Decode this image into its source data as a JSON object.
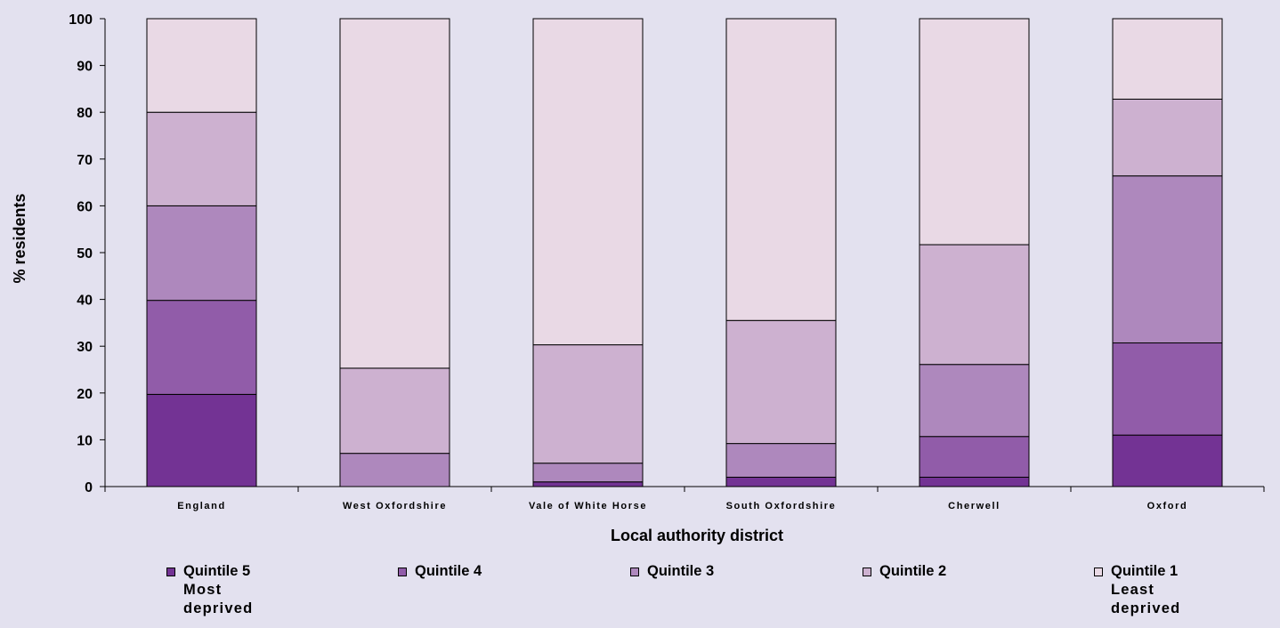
{
  "chart_data": {
    "type": "bar",
    "stacked": true,
    "categories": [
      "England",
      "West Oxfordshire",
      "Vale of White Horse",
      "South Oxfordshire",
      "Cherwell",
      "Oxford"
    ],
    "xlabel": "Local authority district",
    "ylabel": "% residents",
    "ylim": [
      0,
      100
    ],
    "yticks": [
      0,
      10,
      20,
      30,
      40,
      50,
      60,
      70,
      80,
      90,
      100
    ],
    "grid": false,
    "legend_position": "bottom",
    "series": [
      {
        "name": "Quintile 5",
        "sublabel": "Most deprived",
        "color": "#733394",
        "values": [
          19.7,
          0,
          1.0,
          2.0,
          2.0,
          11.0
        ]
      },
      {
        "name": "Quintile 4",
        "sublabel": "",
        "color": "#915ca9",
        "values": [
          20.1,
          0,
          0,
          0,
          8.7,
          19.7
        ]
      },
      {
        "name": "Quintile 3",
        "sublabel": "",
        "color": "#ae88bd",
        "values": [
          20.2,
          7.1,
          4.0,
          7.2,
          15.4,
          35.7
        ]
      },
      {
        "name": "Quintile 2",
        "sublabel": "",
        "color": "#cdb1d0",
        "values": [
          20.0,
          18.2,
          25.3,
          26.3,
          25.6,
          16.4
        ]
      },
      {
        "name": "Quintile 1",
        "sublabel": "Least deprived",
        "color": "#e9d9e5",
        "values": [
          20.0,
          74.7,
          69.7,
          64.5,
          48.3,
          17.2
        ]
      }
    ]
  }
}
